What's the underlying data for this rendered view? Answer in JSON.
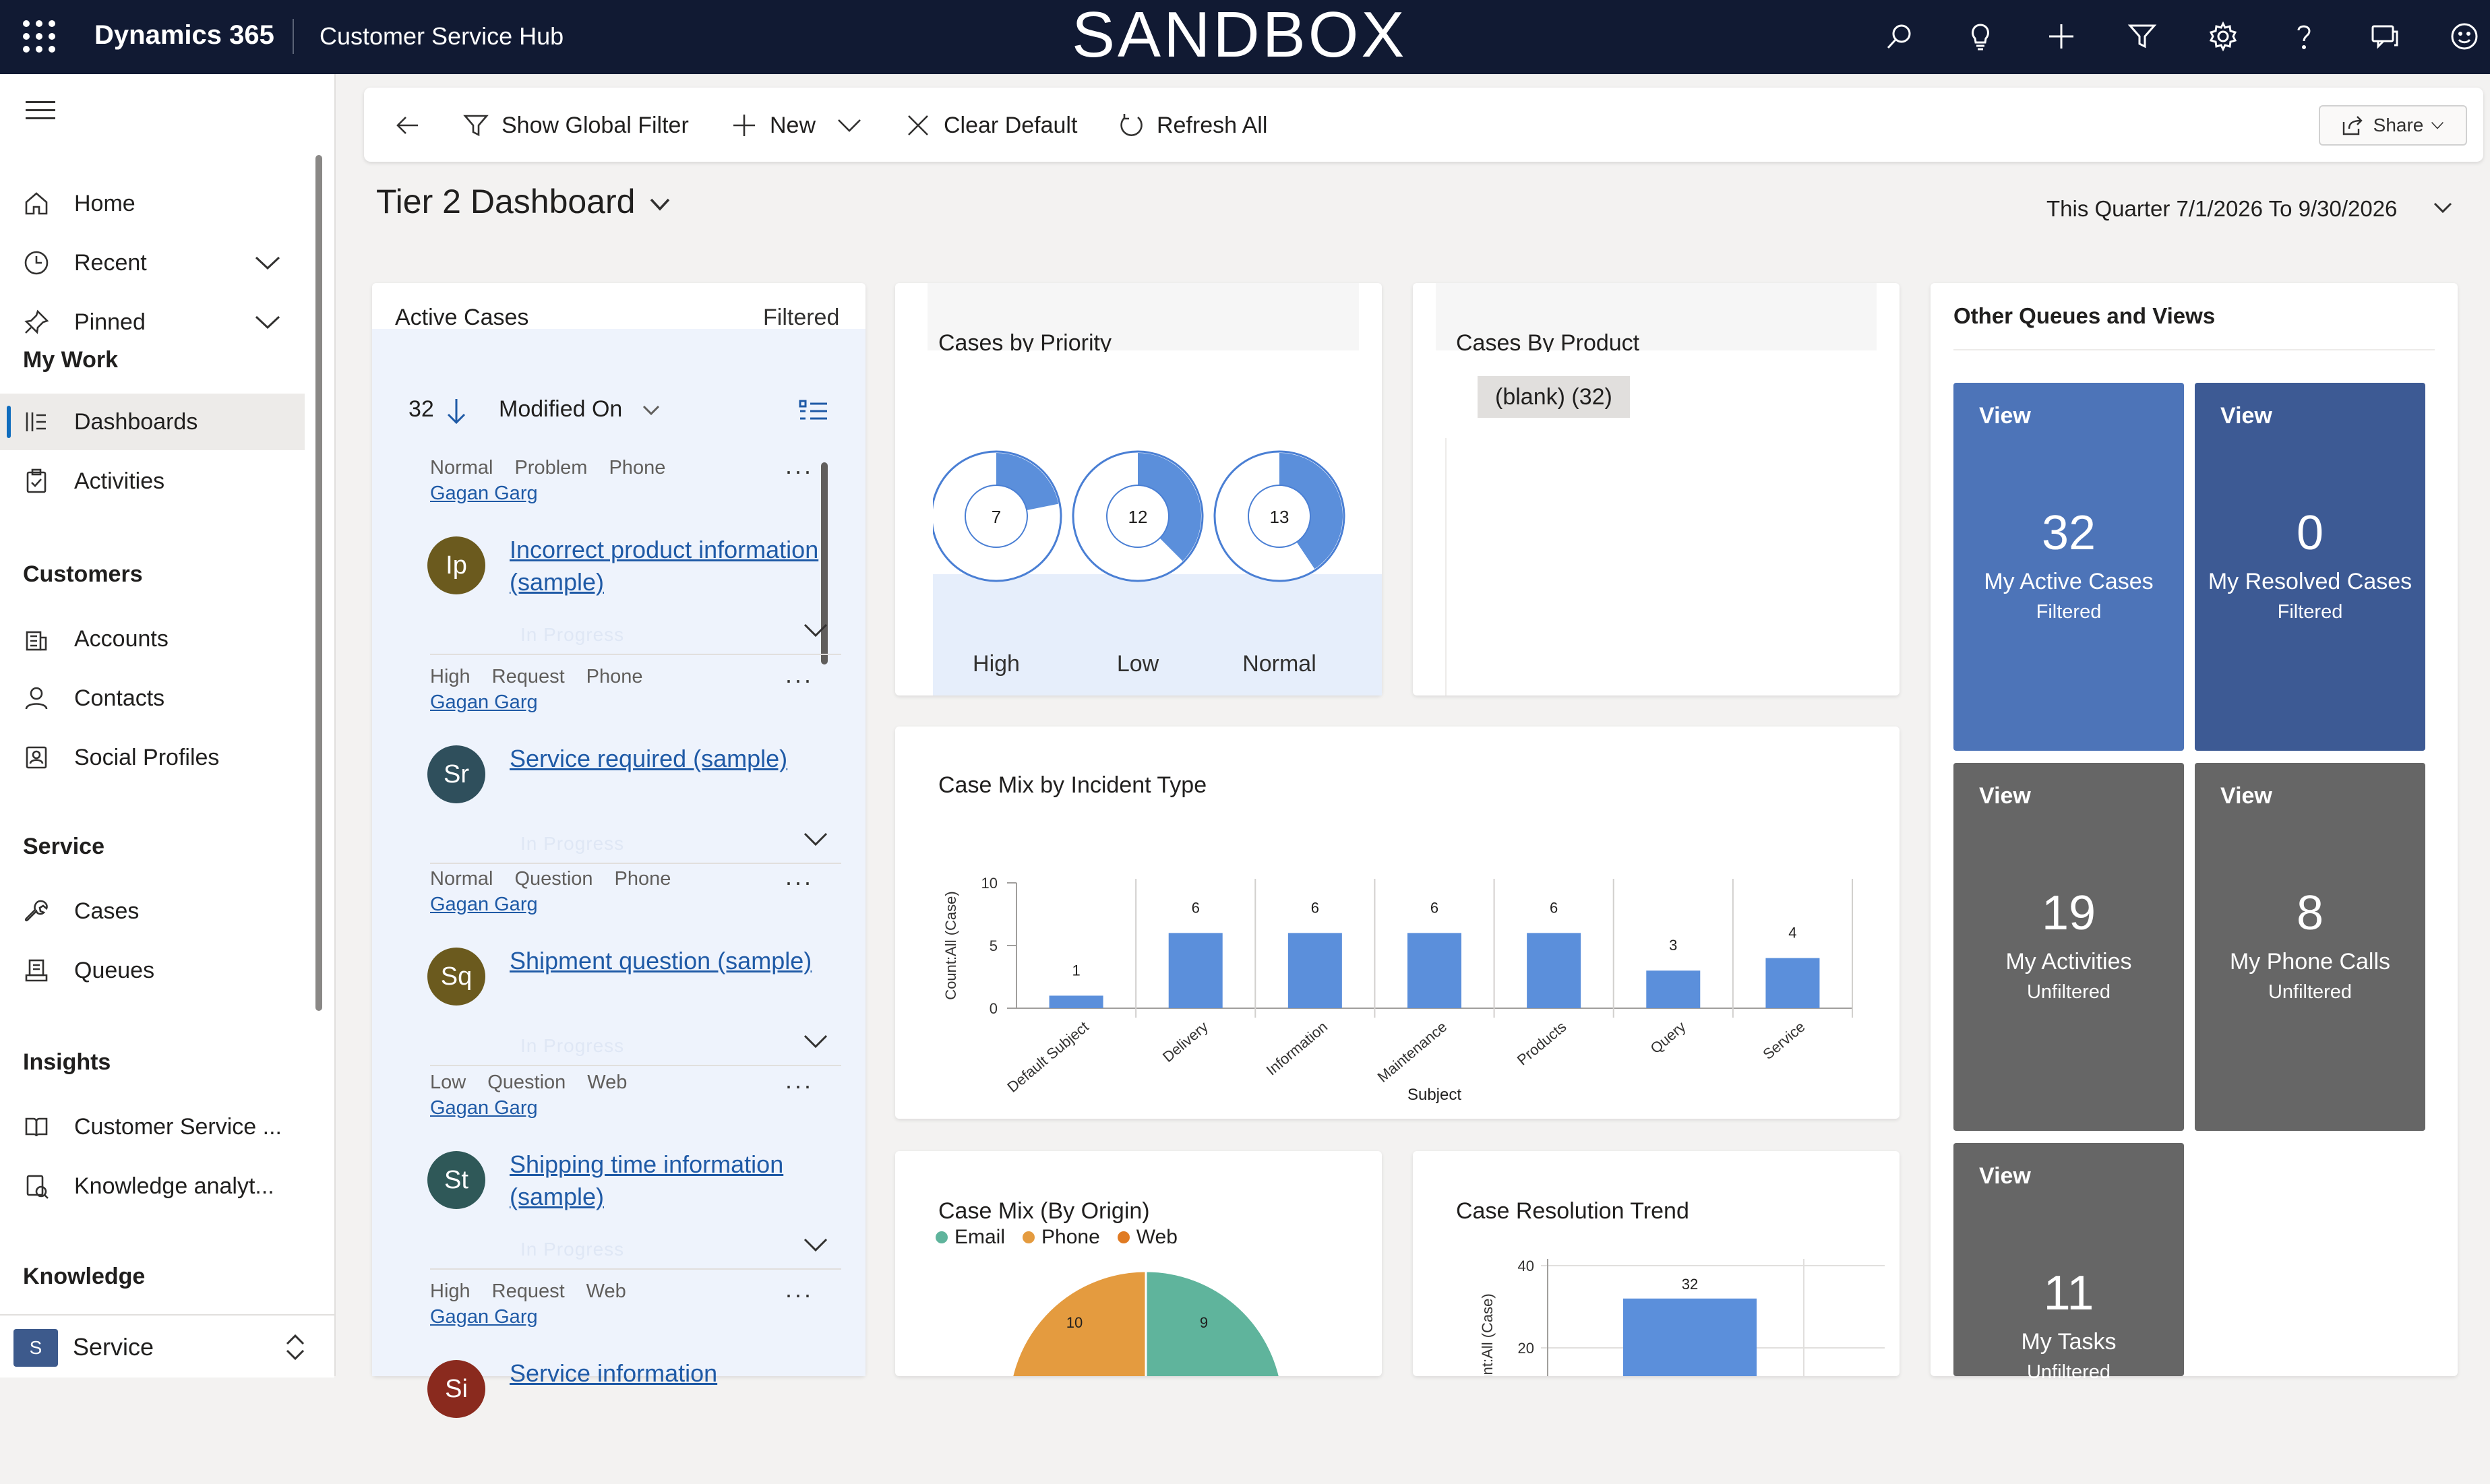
{
  "topbar": {
    "app_name": "Dynamics 365",
    "hub_name": "Customer Service Hub",
    "environment_banner": "SANDBOX",
    "icons": [
      "search-icon",
      "lightbulb-icon",
      "plus-icon",
      "filter-icon",
      "gear-icon",
      "help-icon",
      "chat-icon",
      "smiley-icon"
    ]
  },
  "sidebar": {
    "home": "Home",
    "recent": "Recent",
    "pinned": "Pinned",
    "my_work_header": "My Work",
    "dashboards": "Dashboards",
    "activities": "Activities",
    "customers_header": "Customers",
    "accounts": "Accounts",
    "contacts": "Contacts",
    "social_profiles": "Social Profiles",
    "service_header": "Service",
    "cases": "Cases",
    "queues": "Queues",
    "insights_header": "Insights",
    "customer_service_insights": "Customer Service ...",
    "knowledge_analytics": "Knowledge analyt...",
    "knowledge_header": "Knowledge",
    "area_badge": "S",
    "area_name": "Service"
  },
  "commandbar": {
    "show_global_filter": "Show Global Filter",
    "new": "New",
    "clear_default": "Clear Default",
    "refresh_all": "Refresh All",
    "share": "Share"
  },
  "dashboard": {
    "title": "Tier 2 Dashboard",
    "date_range": "This Quarter 7/1/2026 To 9/30/2026"
  },
  "active_cases": {
    "title": "Active Cases",
    "filter_state": "Filtered",
    "count": "32",
    "sort_field": "Modified On",
    "status_text": "In Progress",
    "items": [
      {
        "priority": "Normal",
        "type": "Problem",
        "origin": "Phone",
        "owner": "Gagan Garg",
        "initials": "Ip",
        "title": "Incorrect product information (sample)",
        "avatar_color": "#6b5a1e"
      },
      {
        "priority": "High",
        "type": "Request",
        "origin": "Phone",
        "owner": "Gagan Garg",
        "initials": "Sr",
        "title": "Service required (sample)",
        "avatar_color": "#2f4f5c"
      },
      {
        "priority": "Normal",
        "type": "Question",
        "origin": "Phone",
        "owner": "Gagan Garg",
        "initials": "Sq",
        "title": "Shipment question (sample)",
        "avatar_color": "#6b5a1e"
      },
      {
        "priority": "Low",
        "type": "Question",
        "origin": "Web",
        "owner": "Gagan Garg",
        "initials": "St",
        "title": "Shipping time information (sample)",
        "avatar_color": "#2f5858"
      },
      {
        "priority": "High",
        "type": "Request",
        "origin": "Web",
        "owner": "Gagan Garg",
        "initials": "Si",
        "title": "Service information",
        "avatar_color": "#8a2a1e"
      }
    ]
  },
  "cases_by_priority": {
    "title": "Cases by Priority",
    "chart_data": {
      "type": "pie",
      "categories": [
        "High",
        "Low",
        "Normal"
      ],
      "values": [
        7,
        12,
        13
      ],
      "total": 32
    }
  },
  "cases_by_product": {
    "title": "Cases By Product",
    "chip": "(blank) (32)"
  },
  "case_mix_incident": {
    "title": "Case Mix by Incident Type",
    "chart_data": {
      "type": "bar",
      "categories": [
        "Default Subject",
        "Delivery",
        "Information",
        "Maintenance",
        "Products",
        "Query",
        "Service"
      ],
      "values": [
        1,
        6,
        6,
        6,
        6,
        3,
        4
      ],
      "xlabel": "Subject",
      "ylabel": "Count:All (Case)",
      "ylim": [
        0,
        10
      ],
      "yticks": [
        "0",
        "5",
        "10"
      ],
      "color": "#5b8fdb"
    }
  },
  "case_mix_origin": {
    "title": "Case Mix (By Origin)",
    "legend": [
      {
        "name": "Email",
        "color": "#5fb49c"
      },
      {
        "name": "Phone",
        "color": "#e49b3f"
      },
      {
        "name": "Web",
        "color": "#e07b23"
      }
    ],
    "chart_data": {
      "type": "pie",
      "categories": [
        "Phone",
        "Email"
      ],
      "values": [
        10,
        9
      ]
    }
  },
  "case_resolution_trend": {
    "title": "Case Resolution Trend",
    "chart_data": {
      "type": "bar",
      "values": [
        32
      ],
      "ylabel": "Count:All (Case)",
      "yticks": [
        "20",
        "40"
      ]
    }
  },
  "other_queues": {
    "title": "Other Queues and Views",
    "tiles": [
      {
        "view": "View",
        "count": "32",
        "name": "My Active Cases",
        "filter": "Filtered",
        "color": "#4d74b8"
      },
      {
        "view": "View",
        "count": "0",
        "name": "My Resolved Cases",
        "filter": "Filtered",
        "color": "#3d5a94"
      },
      {
        "view": "View",
        "count": "19",
        "name": "My Activities",
        "filter": "Unfiltered",
        "color": "#666666"
      },
      {
        "view": "View",
        "count": "8",
        "name": "My Phone Calls",
        "filter": "Unfiltered",
        "color": "#666666"
      },
      {
        "view": "View",
        "count": "11",
        "name": "My Tasks",
        "filter": "Unfiltered",
        "color": "#666666"
      }
    ]
  }
}
